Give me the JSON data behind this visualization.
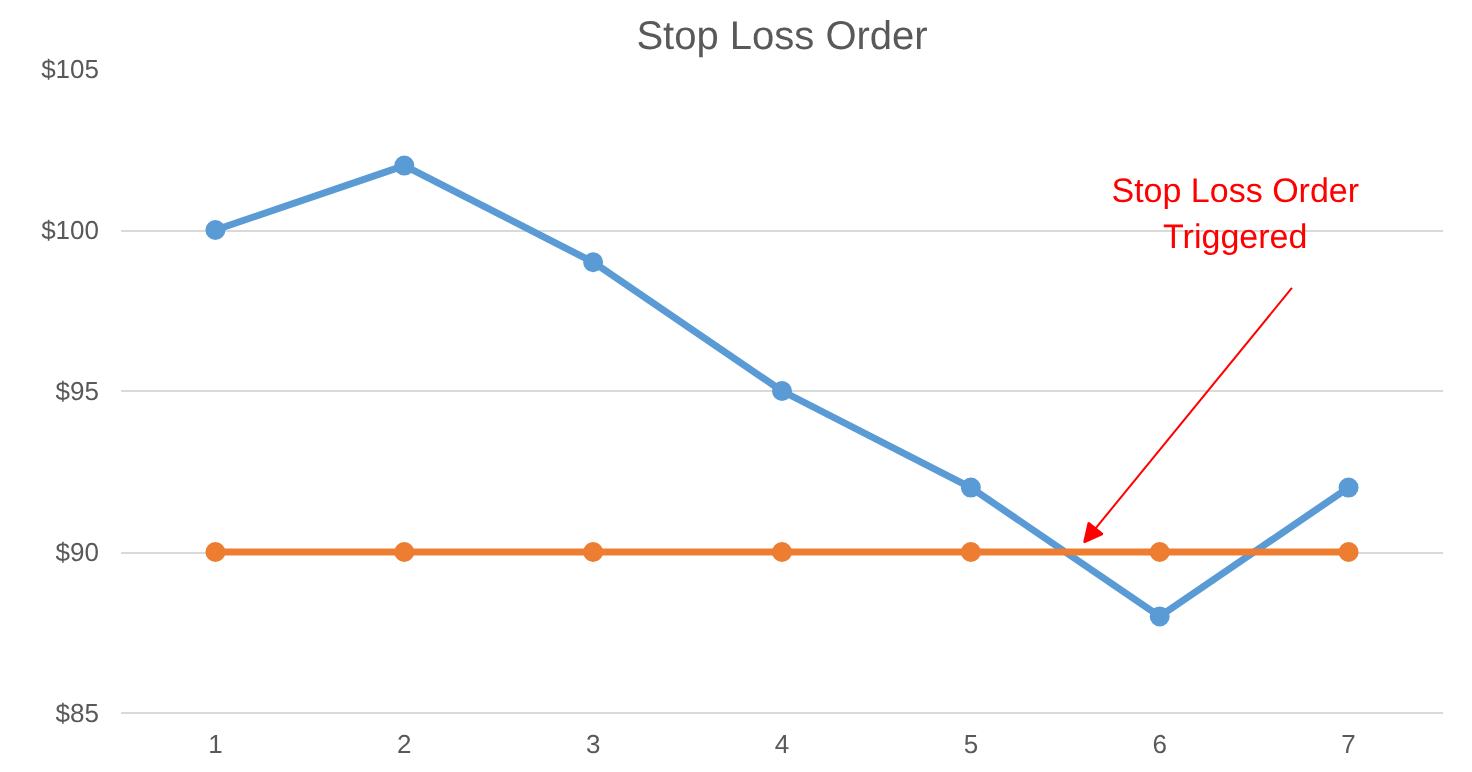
{
  "chart_data": {
    "type": "line",
    "title": "Stop Loss Order",
    "x": [
      1,
      2,
      3,
      4,
      5,
      6,
      7
    ],
    "series": [
      {
        "color": "#5b9bd5",
        "values": [
          100,
          102,
          99,
          95,
          92,
          88,
          92
        ]
      },
      {
        "color": "#ed7d31",
        "values": [
          90,
          90,
          90,
          90,
          90,
          90,
          90
        ]
      }
    ],
    "xlim": [
      0.5,
      7.5
    ],
    "xticks": [
      1,
      2,
      3,
      4,
      5,
      6,
      7
    ],
    "ylim": [
      85,
      105
    ],
    "yticks": [
      {
        "value": 85,
        "label": "$85"
      },
      {
        "value": 90,
        "label": "$90"
      },
      {
        "value": 95,
        "label": "$95"
      },
      {
        "value": 100,
        "label": "$100"
      },
      {
        "value": 105,
        "label": "$105"
      }
    ],
    "grid": "y",
    "marker": "circle",
    "line_style": "solid",
    "annotations": [
      {
        "text": "Stop Loss Order\nTriggered",
        "x": 5.6,
        "y": 90.3
      }
    ]
  }
}
